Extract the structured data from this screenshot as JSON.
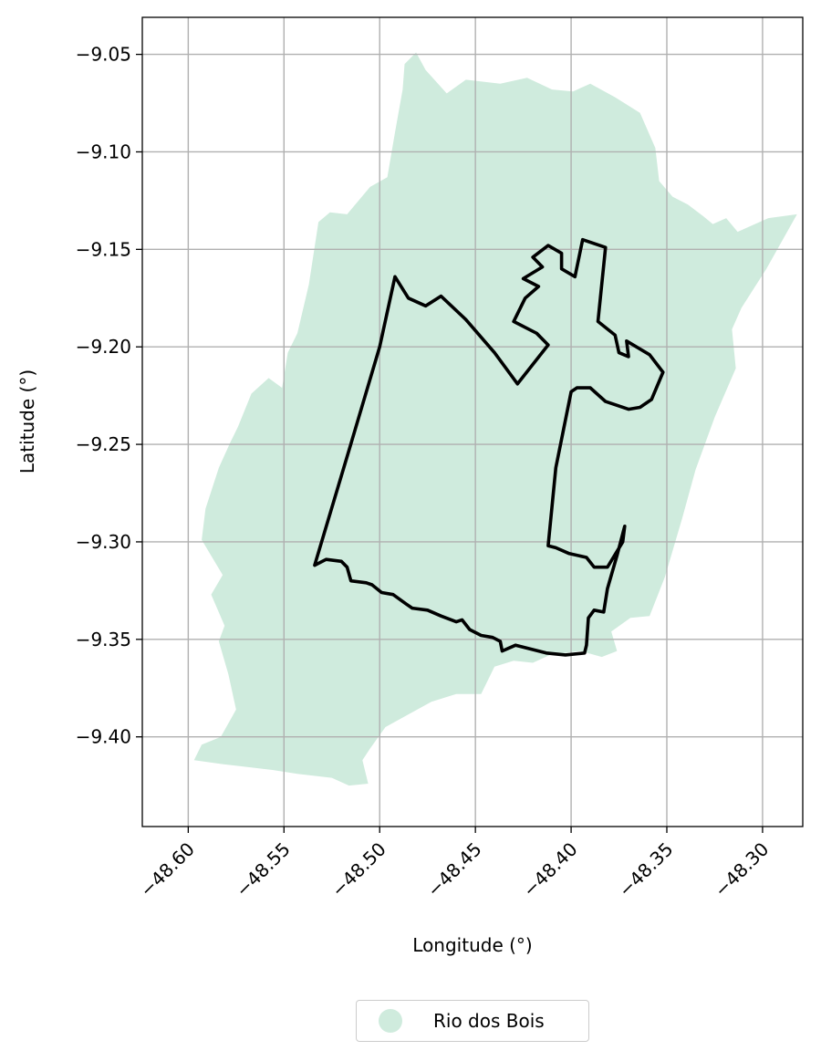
{
  "chart_data": {
    "type": "map",
    "xlabel": "Longitude (°)",
    "ylabel": "Latitude (°)",
    "xlim": [
      -48.624,
      -48.279
    ],
    "ylim": [
      -9.446,
      -9.031
    ],
    "xticks": [
      -48.6,
      -48.55,
      -48.5,
      -48.45,
      -48.4,
      -48.35,
      -48.3
    ],
    "xtick_labels": [
      "−48.60",
      "−48.55",
      "−48.50",
      "−48.45",
      "−48.40",
      "−48.35",
      "−48.30"
    ],
    "yticks": [
      -9.05,
      -9.1,
      -9.15,
      -9.2,
      -9.25,
      -9.3,
      -9.35,
      -9.4
    ],
    "ytick_labels": [
      "−9.05",
      "−9.10",
      "−9.15",
      "−9.20",
      "−9.25",
      "−9.30",
      "−9.35",
      "−9.40"
    ],
    "grid": true,
    "legend_position": "bottom-center",
    "series": [
      {
        "name": "Rio dos Bois",
        "kind": "filled-region",
        "color": "#cfebdd",
        "lonlat": [
          [
            -48.487,
            -9.055
          ],
          [
            -48.481,
            -9.049
          ],
          [
            -48.476,
            -9.058
          ],
          [
            -48.465,
            -9.07
          ],
          [
            -48.455,
            -9.063
          ],
          [
            -48.437,
            -9.065
          ],
          [
            -48.423,
            -9.062
          ],
          [
            -48.41,
            -9.068
          ],
          [
            -48.399,
            -9.069
          ],
          [
            -48.39,
            -9.065
          ],
          [
            -48.377,
            -9.072
          ],
          [
            -48.364,
            -9.08
          ],
          [
            -48.356,
            -9.098
          ],
          [
            -48.354,
            -9.115
          ],
          [
            -48.347,
            -9.123
          ],
          [
            -48.339,
            -9.127
          ],
          [
            -48.331,
            -9.133
          ],
          [
            -48.326,
            -9.137
          ],
          [
            -48.319,
            -9.134
          ],
          [
            -48.313,
            -9.141
          ],
          [
            -48.297,
            -9.134
          ],
          [
            -48.282,
            -9.132
          ],
          [
            -48.298,
            -9.16
          ],
          [
            -48.311,
            -9.18
          ],
          [
            -48.316,
            -9.191
          ],
          [
            -48.314,
            -9.211
          ],
          [
            -48.325,
            -9.236
          ],
          [
            -48.335,
            -9.263
          ],
          [
            -48.342,
            -9.288
          ],
          [
            -48.351,
            -9.318
          ],
          [
            -48.359,
            -9.338
          ],
          [
            -48.369,
            -9.339
          ],
          [
            -48.379,
            -9.346
          ],
          [
            -48.376,
            -9.356
          ],
          [
            -48.384,
            -9.359
          ],
          [
            -48.395,
            -9.356
          ],
          [
            -48.411,
            -9.358
          ],
          [
            -48.42,
            -9.362
          ],
          [
            -48.43,
            -9.361
          ],
          [
            -48.44,
            -9.364
          ],
          [
            -48.447,
            -9.378
          ],
          [
            -48.46,
            -9.378
          ],
          [
            -48.473,
            -9.382
          ],
          [
            -48.486,
            -9.389
          ],
          [
            -48.497,
            -9.395
          ],
          [
            -48.505,
            -9.406
          ],
          [
            -48.509,
            -9.412
          ],
          [
            -48.506,
            -9.424
          ],
          [
            -48.516,
            -9.425
          ],
          [
            -48.525,
            -9.421
          ],
          [
            -48.543,
            -9.419
          ],
          [
            -48.556,
            -9.417
          ],
          [
            -48.582,
            -9.414
          ],
          [
            -48.597,
            -9.412
          ],
          [
            -48.593,
            -9.404
          ],
          [
            -48.583,
            -9.4
          ],
          [
            -48.575,
            -9.386
          ],
          [
            -48.579,
            -9.368
          ],
          [
            -48.584,
            -9.351
          ],
          [
            -48.581,
            -9.343
          ],
          [
            -48.588,
            -9.327
          ],
          [
            -48.582,
            -9.317
          ],
          [
            -48.593,
            -9.299
          ],
          [
            -48.591,
            -9.283
          ],
          [
            -48.584,
            -9.262
          ],
          [
            -48.578,
            -9.249
          ],
          [
            -48.574,
            -9.241
          ],
          [
            -48.567,
            -9.224
          ],
          [
            -48.558,
            -9.216
          ],
          [
            -48.551,
            -9.221
          ],
          [
            -48.548,
            -9.203
          ],
          [
            -48.543,
            -9.193
          ],
          [
            -48.537,
            -9.168
          ],
          [
            -48.532,
            -9.136
          ],
          [
            -48.526,
            -9.131
          ],
          [
            -48.517,
            -9.132
          ],
          [
            -48.505,
            -9.118
          ],
          [
            -48.496,
            -9.113
          ],
          [
            -48.492,
            -9.09
          ],
          [
            -48.488,
            -9.068
          ]
        ]
      },
      {
        "name": "",
        "kind": "outline",
        "color": "#000000",
        "lonlat": [
          [
            -48.492,
            -9.164
          ],
          [
            -48.485,
            -9.175
          ],
          [
            -48.476,
            -9.179
          ],
          [
            -48.468,
            -9.174
          ],
          [
            -48.455,
            -9.186
          ],
          [
            -48.44,
            -9.203
          ],
          [
            -48.428,
            -9.219
          ],
          [
            -48.412,
            -9.199
          ],
          [
            -48.418,
            -9.193
          ],
          [
            -48.43,
            -9.187
          ],
          [
            -48.424,
            -9.175
          ],
          [
            -48.417,
            -9.169
          ],
          [
            -48.425,
            -9.165
          ],
          [
            -48.415,
            -9.159
          ],
          [
            -48.42,
            -9.154
          ],
          [
            -48.412,
            -9.148
          ],
          [
            -48.405,
            -9.152
          ],
          [
            -48.405,
            -9.16
          ],
          [
            -48.398,
            -9.164
          ],
          [
            -48.394,
            -9.145
          ],
          [
            -48.382,
            -9.149
          ],
          [
            -48.386,
            -9.187
          ],
          [
            -48.377,
            -9.194
          ],
          [
            -48.375,
            -9.203
          ],
          [
            -48.37,
            -9.205
          ],
          [
            -48.371,
            -9.197
          ],
          [
            -48.359,
            -9.204
          ],
          [
            -48.352,
            -9.213
          ],
          [
            -48.358,
            -9.227
          ],
          [
            -48.364,
            -9.231
          ],
          [
            -48.37,
            -9.232
          ],
          [
            -48.382,
            -9.228
          ],
          [
            -48.39,
            -9.221
          ],
          [
            -48.397,
            -9.221
          ],
          [
            -48.4,
            -9.223
          ],
          [
            -48.408,
            -9.262
          ],
          [
            -48.412,
            -9.302
          ],
          [
            -48.408,
            -9.303
          ],
          [
            -48.401,
            -9.306
          ],
          [
            -48.392,
            -9.308
          ],
          [
            -48.388,
            -9.313
          ],
          [
            -48.381,
            -9.313
          ],
          [
            -48.373,
            -9.3
          ],
          [
            -48.372,
            -9.292
          ],
          [
            -48.376,
            -9.307
          ],
          [
            -48.381,
            -9.324
          ],
          [
            -48.383,
            -9.336
          ],
          [
            -48.388,
            -9.335
          ],
          [
            -48.391,
            -9.339
          ],
          [
            -48.392,
            -9.353
          ],
          [
            -48.393,
            -9.357
          ],
          [
            -48.403,
            -9.358
          ],
          [
            -48.413,
            -9.357
          ],
          [
            -48.421,
            -9.355
          ],
          [
            -48.429,
            -9.353
          ],
          [
            -48.436,
            -9.356
          ],
          [
            -48.437,
            -9.351
          ],
          [
            -48.441,
            -9.349
          ],
          [
            -48.447,
            -9.348
          ],
          [
            -48.453,
            -9.345
          ],
          [
            -48.457,
            -9.34
          ],
          [
            -48.46,
            -9.341
          ],
          [
            -48.468,
            -9.338
          ],
          [
            -48.475,
            -9.335
          ],
          [
            -48.483,
            -9.334
          ],
          [
            -48.486,
            -9.332
          ],
          [
            -48.493,
            -9.327
          ],
          [
            -48.499,
            -9.326
          ],
          [
            -48.504,
            -9.322
          ],
          [
            -48.507,
            -9.321
          ],
          [
            -48.515,
            -9.32
          ],
          [
            -48.517,
            -9.313
          ],
          [
            -48.52,
            -9.31
          ],
          [
            -48.528,
            -9.309
          ],
          [
            -48.534,
            -9.312
          ],
          [
            -48.516,
            -9.253
          ],
          [
            -48.5,
            -9.2
          ]
        ]
      }
    ]
  },
  "legend": {
    "items": [
      {
        "label": "Rio dos Bois",
        "color": "#cfebdd"
      }
    ]
  }
}
